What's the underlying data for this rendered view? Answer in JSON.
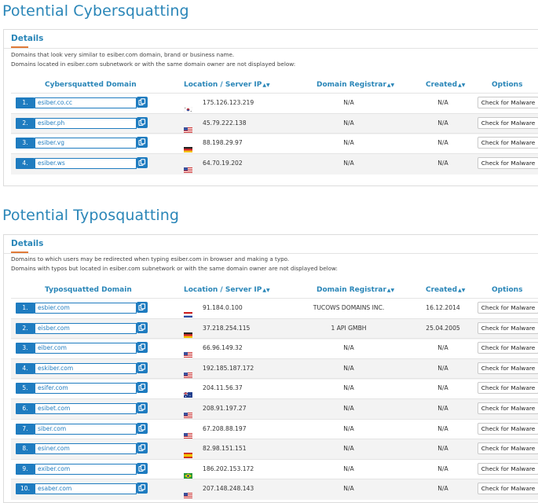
{
  "cyber": {
    "title": "Potential Cybersquatting",
    "details_label": "Details",
    "desc1": "Domains that look very similar to esiber.com domain, brand or business name.",
    "desc2": "Domains located in esiber.com subnetwork or with the same domain owner are not displayed below:",
    "headers": {
      "domain": "Cybersquatted Domain",
      "location": "Location / Server IP",
      "registrar": "Domain Registrar",
      "created": "Created",
      "options": "Options"
    },
    "rows": [
      {
        "num": "1.",
        "domain": "esiber.co.cc",
        "flag": "kr",
        "ip": "175.126.123.219",
        "registrar": "N/A",
        "created": "N/A",
        "action": "Check for Malware"
      },
      {
        "num": "2.",
        "domain": "esiber.ph",
        "flag": "us",
        "ip": "45.79.222.138",
        "registrar": "N/A",
        "created": "N/A",
        "action": "Check for Malware"
      },
      {
        "num": "3.",
        "domain": "esiber.vg",
        "flag": "de",
        "ip": "88.198.29.97",
        "registrar": "N/A",
        "created": "N/A",
        "action": "Check for Malware"
      },
      {
        "num": "4.",
        "domain": "esiber.ws",
        "flag": "us",
        "ip": "64.70.19.202",
        "registrar": "N/A",
        "created": "N/A",
        "action": "Check for Malware"
      }
    ]
  },
  "typo": {
    "title": "Potential Typosquatting",
    "details_label": "Details",
    "desc1": "Domains to which users may be redirected when typing esiber.com in browser and making a typo.",
    "desc2": "Domains with typos but located in esiber.com subnetwork or with the same domain owner are not displayed below:",
    "headers": {
      "domain": "Typosquatted Domain",
      "location": "Location / Server IP",
      "registrar": "Domain Registrar",
      "created": "Created",
      "options": "Options"
    },
    "rows": [
      {
        "num": "1.",
        "domain": "esbier.com",
        "flag": "nl",
        "ip": "91.184.0.100",
        "registrar": "TUCOWS DOMAINS INC.",
        "created": "16.12.2014",
        "action": "Check for Malware"
      },
      {
        "num": "2.",
        "domain": "eisber.com",
        "flag": "de",
        "ip": "37.218.254.115",
        "registrar": "1 API GMBH",
        "created": "25.04.2005",
        "action": "Check for Malware"
      },
      {
        "num": "3.",
        "domain": "eiber.com",
        "flag": "us",
        "ip": "66.96.149.32",
        "registrar": "N/A",
        "created": "N/A",
        "action": "Check for Malware"
      },
      {
        "num": "4.",
        "domain": "eskiber.com",
        "flag": "us",
        "ip": "192.185.187.172",
        "registrar": "N/A",
        "created": "N/A",
        "action": "Check for Malware"
      },
      {
        "num": "5.",
        "domain": "esifer.com",
        "flag": "au",
        "ip": "204.11.56.37",
        "registrar": "N/A",
        "created": "N/A",
        "action": "Check for Malware"
      },
      {
        "num": "6.",
        "domain": "esibet.com",
        "flag": "us",
        "ip": "208.91.197.27",
        "registrar": "N/A",
        "created": "N/A",
        "action": "Check for Malware"
      },
      {
        "num": "7.",
        "domain": "siber.com",
        "flag": "us",
        "ip": "67.208.88.197",
        "registrar": "N/A",
        "created": "N/A",
        "action": "Check for Malware"
      },
      {
        "num": "8.",
        "domain": "esiner.com",
        "flag": "es",
        "ip": "82.98.151.151",
        "registrar": "N/A",
        "created": "N/A",
        "action": "Check for Malware"
      },
      {
        "num": "9.",
        "domain": "exiber.com",
        "flag": "br",
        "ip": "186.202.153.172",
        "registrar": "N/A",
        "created": "N/A",
        "action": "Check for Malware"
      },
      {
        "num": "10.",
        "domain": "esaber.com",
        "flag": "us",
        "ip": "207.148.248.143",
        "registrar": "N/A",
        "created": "N/A",
        "action": "Check for Malware"
      }
    ]
  },
  "sort_glyph": "▲▼"
}
